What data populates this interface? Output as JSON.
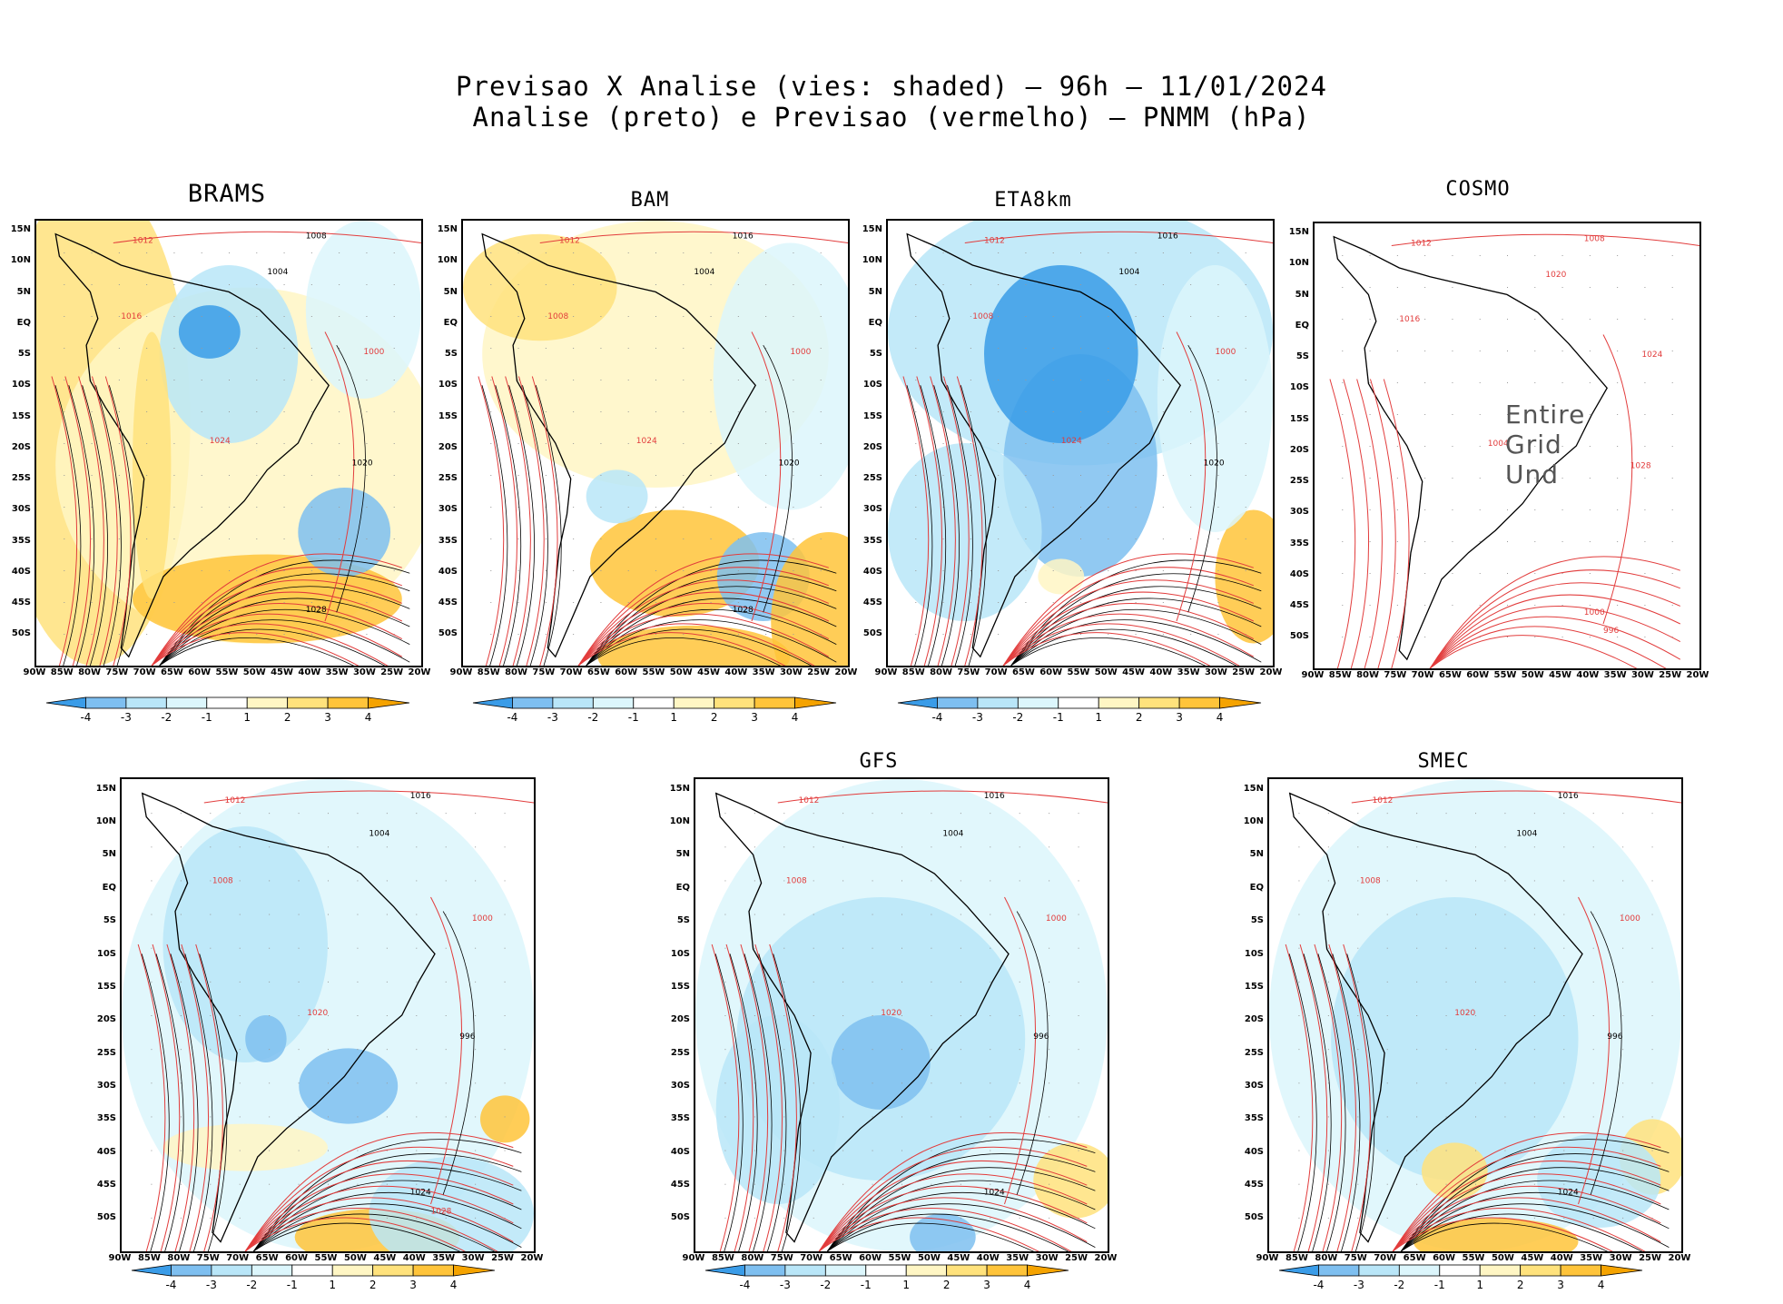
{
  "title_line1": "Previsao X Analise (vies: shaded) – 96h – 11/01/2024",
  "title_line2": "Analise (preto) e Previsao (vermelho) – PNMM (hPa)",
  "lat_labels": [
    "15N",
    "10N",
    "5N",
    "EQ",
    "5S",
    "10S",
    "15S",
    "20S",
    "25S",
    "30S",
    "35S",
    "40S",
    "45S",
    "50S"
  ],
  "lon_labels": [
    "90W",
    "85W",
    "80W",
    "75W",
    "70W",
    "65W",
    "60W",
    "55W",
    "50W",
    "45W",
    "40W",
    "35W",
    "30W",
    "25W",
    "20W"
  ],
  "colorbar_labels": [
    "-4",
    "-3",
    "-2",
    "-1",
    "1",
    "2",
    "3",
    "4"
  ],
  "colors": {
    "neg4": "#3a9ce8",
    "neg3": "#7ebff0",
    "neg2": "#b9e6f8",
    "neg1": "#dcf6fc",
    "pos1": "#fff6c4",
    "pos2": "#ffe27c",
    "pos3": "#ffc43a",
    "pos4": "#f5a300",
    "analysis": "#000000",
    "forecast": "#e23c3c"
  },
  "panels": [
    {
      "id": "brams",
      "name": "BRAMS",
      "contours": [
        "1012",
        "1008",
        "1016",
        "1004",
        "1000",
        "1020",
        "1024",
        "1028"
      ]
    },
    {
      "id": "bam",
      "name": "BAM",
      "contours": [
        "1012",
        "1016",
        "1008",
        "1004",
        "1000",
        "1020",
        "1024",
        "1028"
      ]
    },
    {
      "id": "eta",
      "name": "ETA8km",
      "contours": [
        "1012",
        "1016",
        "1008",
        "1004",
        "1000",
        "1020",
        "1024"
      ]
    },
    {
      "id": "cosmo",
      "name": "COSMO",
      "contours": [
        "1012",
        "1008",
        "1016",
        "1020",
        "1024",
        "1028",
        "1004",
        "1000",
        "996"
      ],
      "undefined_text": "Entire Grid Und"
    },
    {
      "id": "p5",
      "name": "",
      "contours": [
        "1012",
        "1016",
        "1008",
        "1004",
        "1000",
        "996",
        "1020",
        "1024",
        "1028"
      ]
    },
    {
      "id": "gfs",
      "name": "GFS",
      "contours": [
        "1012",
        "1016",
        "1008",
        "1004",
        "1000",
        "996",
        "1020",
        "1024"
      ]
    },
    {
      "id": "smec",
      "name": "SMEC",
      "contours": [
        "1012",
        "1016",
        "1008",
        "1004",
        "1000",
        "996",
        "1020",
        "1024"
      ]
    }
  ]
}
